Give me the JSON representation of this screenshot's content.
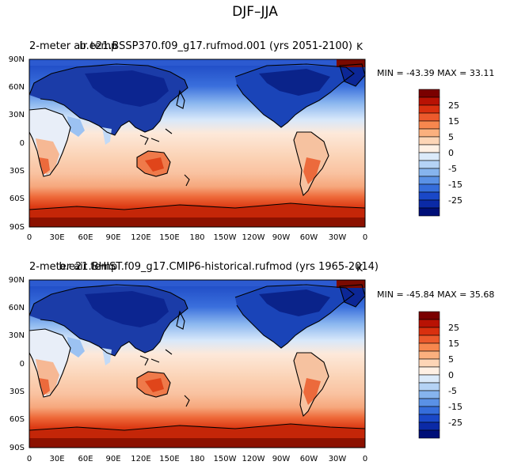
{
  "figure_title": "DJF–JJA",
  "units": "K",
  "panels": [
    {
      "variable": "2-meter air temp",
      "case": "b.e21.BSSP370.f09_g17.rufmod.001 (yrs 2051-2100)",
      "min_max": "MIN = -43.39  MAX =  33.11"
    },
    {
      "variable": "2-meter air temp",
      "case": "b.e21.BHIST.f09_g17.CMIP6-historical.rufmod (yrs 1965-2014)",
      "min_max": "MIN = -45.84  MAX =  35.68"
    }
  ],
  "axes": {
    "x_ticks": [
      "0",
      "30E",
      "60E",
      "90E",
      "120E",
      "150E",
      "180",
      "150W",
      "120W",
      "90W",
      "60W",
      "30W",
      "0"
    ],
    "y_ticks": [
      "90N",
      "60N",
      "30N",
      "0",
      "30S",
      "60S",
      "90S"
    ]
  },
  "colorbar": {
    "labels": [
      "25",
      "15",
      "5",
      "0",
      "-5",
      "-15",
      "-25"
    ],
    "colors": [
      "#7a0000",
      "#b81204",
      "#d9300f",
      "#ec5a2c",
      "#f7874e",
      "#fbb07e",
      "#fdd5b6",
      "#fff0e4",
      "#dbeafa",
      "#b5d3f5",
      "#86b4ee",
      "#5a91e6",
      "#356ddb",
      "#1a48c8",
      "#0b2aa6",
      "#000f78"
    ]
  },
  "colors": {
    "ocean_warm": "#fbdcc4",
    "land_warm": "#ee7a4a",
    "cold_deep": "#0e2f9e",
    "coast": "#000000"
  }
}
